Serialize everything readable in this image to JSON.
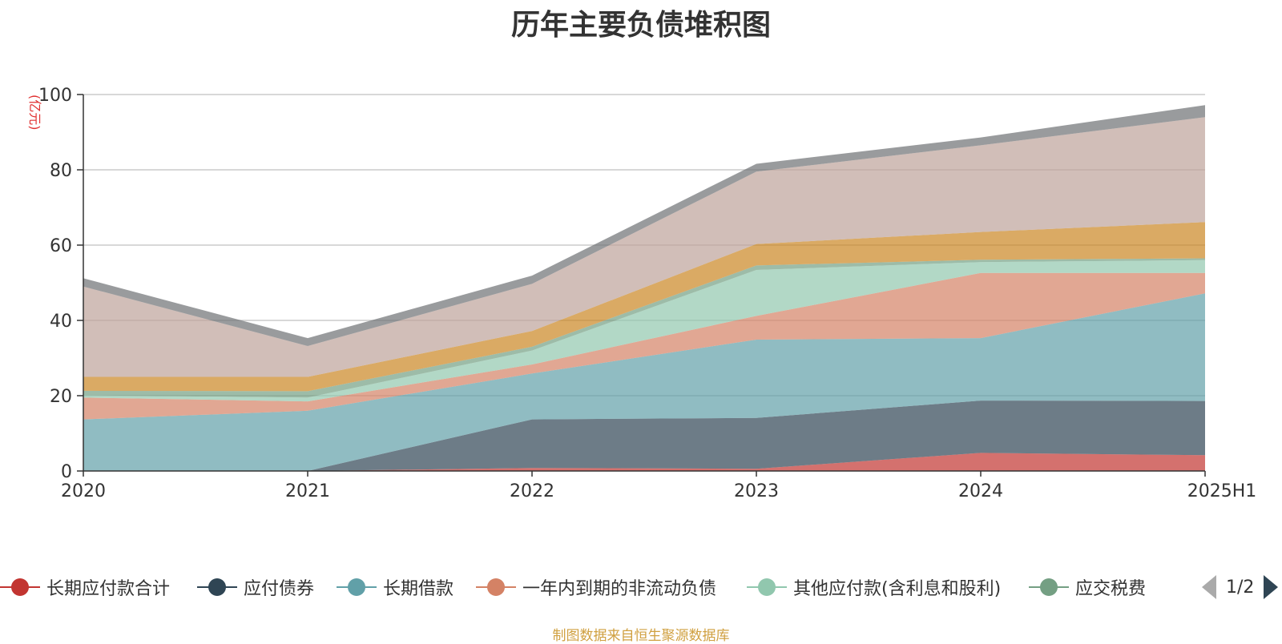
{
  "title": "历年主要负债堆积图",
  "unit_label": "(亿元)",
  "source_note": "制图数据来自恒生聚源数据库",
  "pager": {
    "text": "1/2"
  },
  "chart_data": {
    "type": "area",
    "stacked": true,
    "title": "历年主要负债堆积图",
    "ylabel": "(亿元)",
    "x": [
      "2020",
      "2021",
      "2022",
      "2023",
      "2024",
      "2025H1"
    ],
    "ylim": [
      0,
      100
    ],
    "yticks": [
      0,
      20,
      40,
      60,
      80,
      100
    ],
    "grid": true,
    "legend_position": "bottom",
    "series": [
      {
        "name": "长期应付款合计",
        "color": "#c23531",
        "values": [
          0,
          0,
          0.8,
          0.6,
          4.8,
          4.2
        ]
      },
      {
        "name": "应付债券",
        "color": "#2f4554",
        "values": [
          0,
          0,
          12.9,
          13.5,
          13.9,
          14.4
        ]
      },
      {
        "name": "长期借款",
        "color": "#61a0a8",
        "values": [
          13.7,
          16.0,
          12.2,
          20.8,
          16.6,
          28.6
        ]
      },
      {
        "name": "一年内到期的非流动负债",
        "color": "#d48265",
        "values": [
          5.8,
          2.5,
          2.4,
          6.3,
          17.3,
          5.4
        ]
      },
      {
        "name": "其他应付款(含利息和股利)",
        "color": "#91c7ae",
        "values": [
          0.6,
          1.0,
          3.7,
          12.2,
          2.9,
          3.4
        ]
      },
      {
        "name": "应交税费",
        "color": "#749f83",
        "values": [
          1.2,
          1.7,
          1.0,
          1.2,
          0.6,
          0.5
        ]
      },
      {
        "name": "",
        "color": "#ca8622",
        "values": [
          3.7,
          3.8,
          4.2,
          5.7,
          7.4,
          9.6
        ]
      },
      {
        "name": "",
        "color": "#bda29a",
        "values": [
          24.0,
          8.2,
          12.5,
          19.2,
          23.0,
          27.9
        ]
      },
      {
        "name": "",
        "color": "#6e7074",
        "values": [
          2.2,
          2.1,
          2.2,
          2.1,
          2.1,
          3.2
        ]
      }
    ],
    "visible_legend": [
      "长期应付款合计",
      "应付债券",
      "长期借款",
      "一年内到期的非流动负债",
      "其他应付款(含利息和股利)",
      "应交税费"
    ]
  }
}
